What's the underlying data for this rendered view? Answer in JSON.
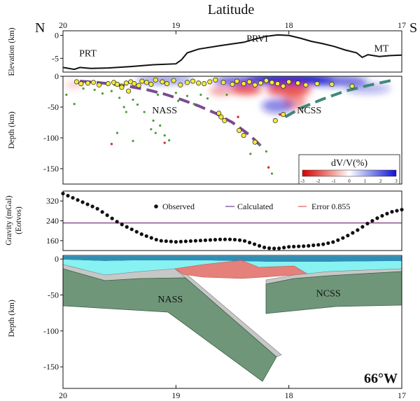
{
  "figure": {
    "top_axis_label": "Latitude",
    "north": "N",
    "south": "S",
    "longitude_label": "66°W"
  },
  "colors": {
    "slab_fill": "#6f9679",
    "slab_stroke": "#3e5f45",
    "crust_gray": "#c7c7c7",
    "water_cyan": "#88f1f1",
    "water_blue": "#2e8fb6",
    "anomaly_red": "#e6807a",
    "nass_dash": "#7b4a93",
    "ncss_dash": "#3d8a78",
    "seismic_negative": "#e53935",
    "seismic_positive": "#1a1acb",
    "quake_large": "#f2ec36",
    "quake_small": "#4a9a3c",
    "quake_red": "#c83636"
  },
  "chart_data": [
    {
      "type": "line",
      "id": "elevation",
      "ylabel": "Elevation (km)",
      "xlim": [
        20,
        17
      ],
      "ylim": [
        -8,
        1
      ],
      "x_ticks": [
        20,
        19,
        18,
        17
      ],
      "y_ticks": [
        0,
        -5
      ],
      "labels": [
        {
          "text": "PRT",
          "x": 19.78,
          "y": -4.6
        },
        {
          "text": "PRVI",
          "x": 18.28,
          "y": -1.4
        },
        {
          "text": "MT",
          "x": 17.18,
          "y": -3.5
        }
      ],
      "x": [
        20.0,
        19.9,
        19.85,
        19.75,
        19.6,
        19.4,
        19.2,
        19.0,
        18.95,
        18.9,
        18.8,
        18.6,
        18.4,
        18.3,
        18.2,
        18.1,
        18.0,
        17.9,
        17.8,
        17.7,
        17.6,
        17.5,
        17.4,
        17.35,
        17.3,
        17.2,
        17.1,
        17.0
      ],
      "y": [
        -7.0,
        -7.4,
        -7.0,
        -7.2,
        -7.1,
        -6.8,
        -6.4,
        -6.2,
        -5.3,
        -3.8,
        -3.0,
        -2.2,
        -1.5,
        -0.8,
        -0.2,
        0.1,
        0.0,
        -0.6,
        -1.3,
        -1.8,
        -2.4,
        -3.2,
        -3.8,
        -4.8,
        -4.2,
        -4.6,
        -4.4,
        -4.3
      ]
    },
    {
      "type": "heatmap",
      "id": "tomography",
      "ylabel": "Depth (km)",
      "xlim": [
        20,
        17
      ],
      "ylim": [
        0,
        -175
      ],
      "y_ticks": [
        0,
        -50,
        -100,
        -150
      ],
      "colorbar": {
        "title": "dV/V(%)",
        "range": [
          -3,
          3
        ],
        "ticks": [
          -3,
          -2,
          -1,
          0,
          1,
          2,
          3
        ]
      },
      "labels": [
        {
          "text": "NASS",
          "x": 19.1,
          "y": -60
        },
        {
          "text": "NCSS",
          "x": 17.82,
          "y": -60
        }
      ],
      "anomalies": [
        {
          "x": 18.0,
          "y": -5,
          "rx": 0.4,
          "ry": 9,
          "dv": 3
        },
        {
          "x": 18.45,
          "y": -8,
          "rx": 0.22,
          "ry": 6,
          "dv": 2.5
        },
        {
          "x": 17.6,
          "y": -8,
          "rx": 0.3,
          "ry": 8,
          "dv": 2
        },
        {
          "x": 19.1,
          "y": -6,
          "rx": 0.25,
          "ry": 6,
          "dv": 1.5
        },
        {
          "x": 17.3,
          "y": -20,
          "rx": 0.2,
          "ry": 8,
          "dv": 1
        },
        {
          "x": 18.38,
          "y": -22,
          "rx": 0.14,
          "ry": 8,
          "dv": -2.5
        },
        {
          "x": 18.0,
          "y": -22,
          "rx": 0.2,
          "ry": 10,
          "dv": -2.5
        },
        {
          "x": 17.95,
          "y": -40,
          "rx": 0.1,
          "ry": 14,
          "dv": -1.5
        },
        {
          "x": 18.6,
          "y": -24,
          "rx": 0.1,
          "ry": 7,
          "dv": -1.5
        },
        {
          "x": 19.9,
          "y": -14,
          "rx": 0.08,
          "ry": 4,
          "dv": -1
        },
        {
          "x": 18.1,
          "y": -48,
          "rx": 0.14,
          "ry": 12,
          "dv": 1.5
        }
      ],
      "series": [
        {
          "name": "NASS",
          "style": "dashed",
          "x": [
            19.85,
            19.7,
            19.55,
            19.4,
            19.25,
            19.1,
            18.95,
            18.8,
            18.65,
            18.5,
            18.35,
            18.22
          ],
          "y": [
            -8,
            -10,
            -13,
            -17,
            -22,
            -29,
            -38,
            -48,
            -60,
            -75,
            -95,
            -118
          ]
        },
        {
          "name": "NCSS",
          "style": "dashed",
          "x": [
            17.1,
            17.3,
            17.5,
            17.7,
            17.9,
            18.05
          ],
          "y": [
            -7,
            -15,
            -24,
            -37,
            -52,
            -68
          ]
        },
        {
          "name": "events_large",
          "marker": "circle",
          "x": [
            19.88,
            19.84,
            19.78,
            19.73,
            19.68,
            19.6,
            19.55,
            19.52,
            19.48,
            19.44,
            19.4,
            19.37,
            19.33,
            19.3,
            19.26,
            19.22,
            19.18,
            19.12,
            19.08,
            19.02,
            18.96,
            18.9,
            18.85,
            18.8,
            18.75,
            18.7,
            18.65,
            18.58,
            18.5,
            18.46,
            18.4,
            18.35,
            18.3,
            18.25,
            18.2,
            18.15,
            18.1,
            18.05,
            18.0,
            17.92,
            17.85,
            17.75,
            17.62,
            17.44,
            18.62,
            18.6,
            18.57,
            18.44,
            18.4,
            18.3,
            18.05,
            18.12,
            19.48,
            19.42
          ],
          "y": [
            -9,
            -12,
            -11,
            -10,
            -14,
            -12,
            -10,
            -13,
            -16,
            -11,
            -9,
            -12,
            -15,
            -8,
            -10,
            -13,
            -6,
            -9,
            -12,
            -7,
            -14,
            -10,
            -8,
            -11,
            -12,
            -9,
            -6,
            -10,
            -13,
            -8,
            -12,
            -9,
            -14,
            -11,
            -7,
            -10,
            -12,
            -16,
            -9,
            -11,
            -14,
            -12,
            -13,
            -16,
            -60,
            -66,
            -72,
            -88,
            -96,
            -107,
            -62,
            -72,
            -18,
            -24
          ]
        },
        {
          "name": "events_small",
          "marker": "circle",
          "x": [
            19.97,
            19.9,
            19.72,
            19.65,
            19.5,
            19.46,
            19.38,
            19.34,
            19.28,
            19.2,
            19.14,
            19.0,
            18.9,
            18.84,
            18.55,
            18.34,
            18.26,
            18.2,
            18.15,
            19.82,
            19.57,
            19.16,
            19.22,
            19.18,
            19.1,
            19.06,
            18.98,
            18.78,
            18.72,
            19.44,
            19.52,
            19.38
          ],
          "y": [
            -30,
            -45,
            -22,
            -28,
            -35,
            -50,
            -38,
            -46,
            -58,
            -72,
            -80,
            -27,
            -32,
            -45,
            -30,
            -126,
            -110,
            -122,
            -158,
            -20,
            -24,
            -30,
            -86,
            -92,
            -96,
            -104,
            -40,
            -30,
            -36,
            -58,
            -92,
            -105
          ]
        },
        {
          "name": "events_red",
          "marker": "circle",
          "x": [
            19.57,
            19.1,
            18.45,
            18.18,
            18.08
          ],
          "y": [
            -110,
            -108,
            -66,
            -148,
            -62
          ]
        }
      ]
    },
    {
      "type": "scatter",
      "id": "gravity",
      "ylabel": "Gravity (mGal) (Eotvos)",
      "xlim": [
        20,
        17
      ],
      "ylim": [
        120,
        360
      ],
      "y_ticks": [
        160,
        240,
        320
      ],
      "legend_placement": "top-center",
      "series": [
        {
          "name": "Observed",
          "marker": "circle",
          "x": [
            20.0,
            19.7,
            19.5,
            19.3,
            19.15,
            19.0,
            18.8,
            18.6,
            18.5,
            18.4,
            18.3,
            18.2,
            18.1,
            18.0,
            17.85,
            17.7,
            17.6,
            17.5,
            17.4,
            17.3,
            17.2,
            17.1,
            17.0
          ],
          "y": [
            350,
            290,
            230,
            185,
            160,
            155,
            160,
            165,
            165,
            160,
            145,
            130,
            128,
            135,
            138,
            145,
            155,
            175,
            200,
            230,
            255,
            275,
            285
          ]
        },
        {
          "name": "Calculated",
          "style": "line",
          "value": 232
        },
        {
          "name": "Error 0.855",
          "style": "line",
          "value": 232
        }
      ]
    },
    {
      "type": "area",
      "id": "model",
      "ylabel": "Depth (km)",
      "xlim": [
        20,
        17
      ],
      "ylim": [
        5,
        -180
      ],
      "y_ticks": [
        0,
        -50,
        -100,
        -150
      ],
      "labels": [
        {
          "text": "NASS",
          "x": 19.05,
          "y": -60
        },
        {
          "text": "NCSS",
          "x": 17.65,
          "y": -52
        }
      ]
    }
  ]
}
